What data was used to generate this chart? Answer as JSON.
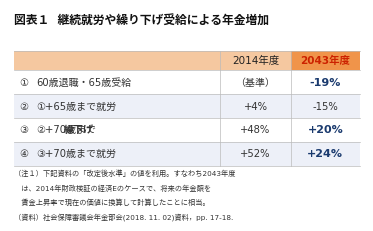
{
  "title": "図表１  継続就労や繰り下げ受給による年金増加",
  "col_headers": [
    "",
    "2014年度",
    "2043年度"
  ],
  "rows": [
    {
      "label_circle": "①",
      "label_text": "60歳退職・65歳受給",
      "label_text_bold": "",
      "val2014": "（基準）",
      "val2043": "-19%",
      "bold2043": true,
      "row_bg": "#ffffff"
    },
    {
      "label_circle": "②",
      "label_text": "①+65歳まで就労",
      "label_text_bold": "",
      "val2014": "+4%",
      "val2043": "-15%",
      "bold2043": false,
      "row_bg": "#edf0f8"
    },
    {
      "label_circle": "③",
      "label_text": "②+70歳まで",
      "label_text_bold": "繰下げ",
      "val2014": "+48%",
      "val2043": "+20%",
      "bold2043": true,
      "row_bg": "#ffffff"
    },
    {
      "label_circle": "④",
      "label_text": "③+70歳まで就労",
      "label_text_bold": "",
      "val2014": "+52%",
      "val2043": "+24%",
      "bold2043": true,
      "row_bg": "#edf0f8"
    }
  ],
  "note_lines": [
    "（注１）下記資料の「改定後水準」の値を利用。すなわち2043年度",
    "　は、2014年財政検証の経済Eのケースで、将来の年金額を",
    "　賃金上昇率で現在の価値に換算して計算したことに相当。",
    "（資料）社会保障審議会年金部会(2018. 11. 02)資料，pp. 17-18."
  ],
  "header_col1_bg": "#f5c8a0",
  "header_col2_bg": "#f5c8a0",
  "header_col3_bg": "#f0944a",
  "title_fontsize": 8.5,
  "header_fontsize": 7.5,
  "row_fontsize": 7.2,
  "note_fontsize": 5.2,
  "bold_color": "#1a3a6e",
  "normal_color": "#333333",
  "header_col3_text_color": "#cc2200"
}
